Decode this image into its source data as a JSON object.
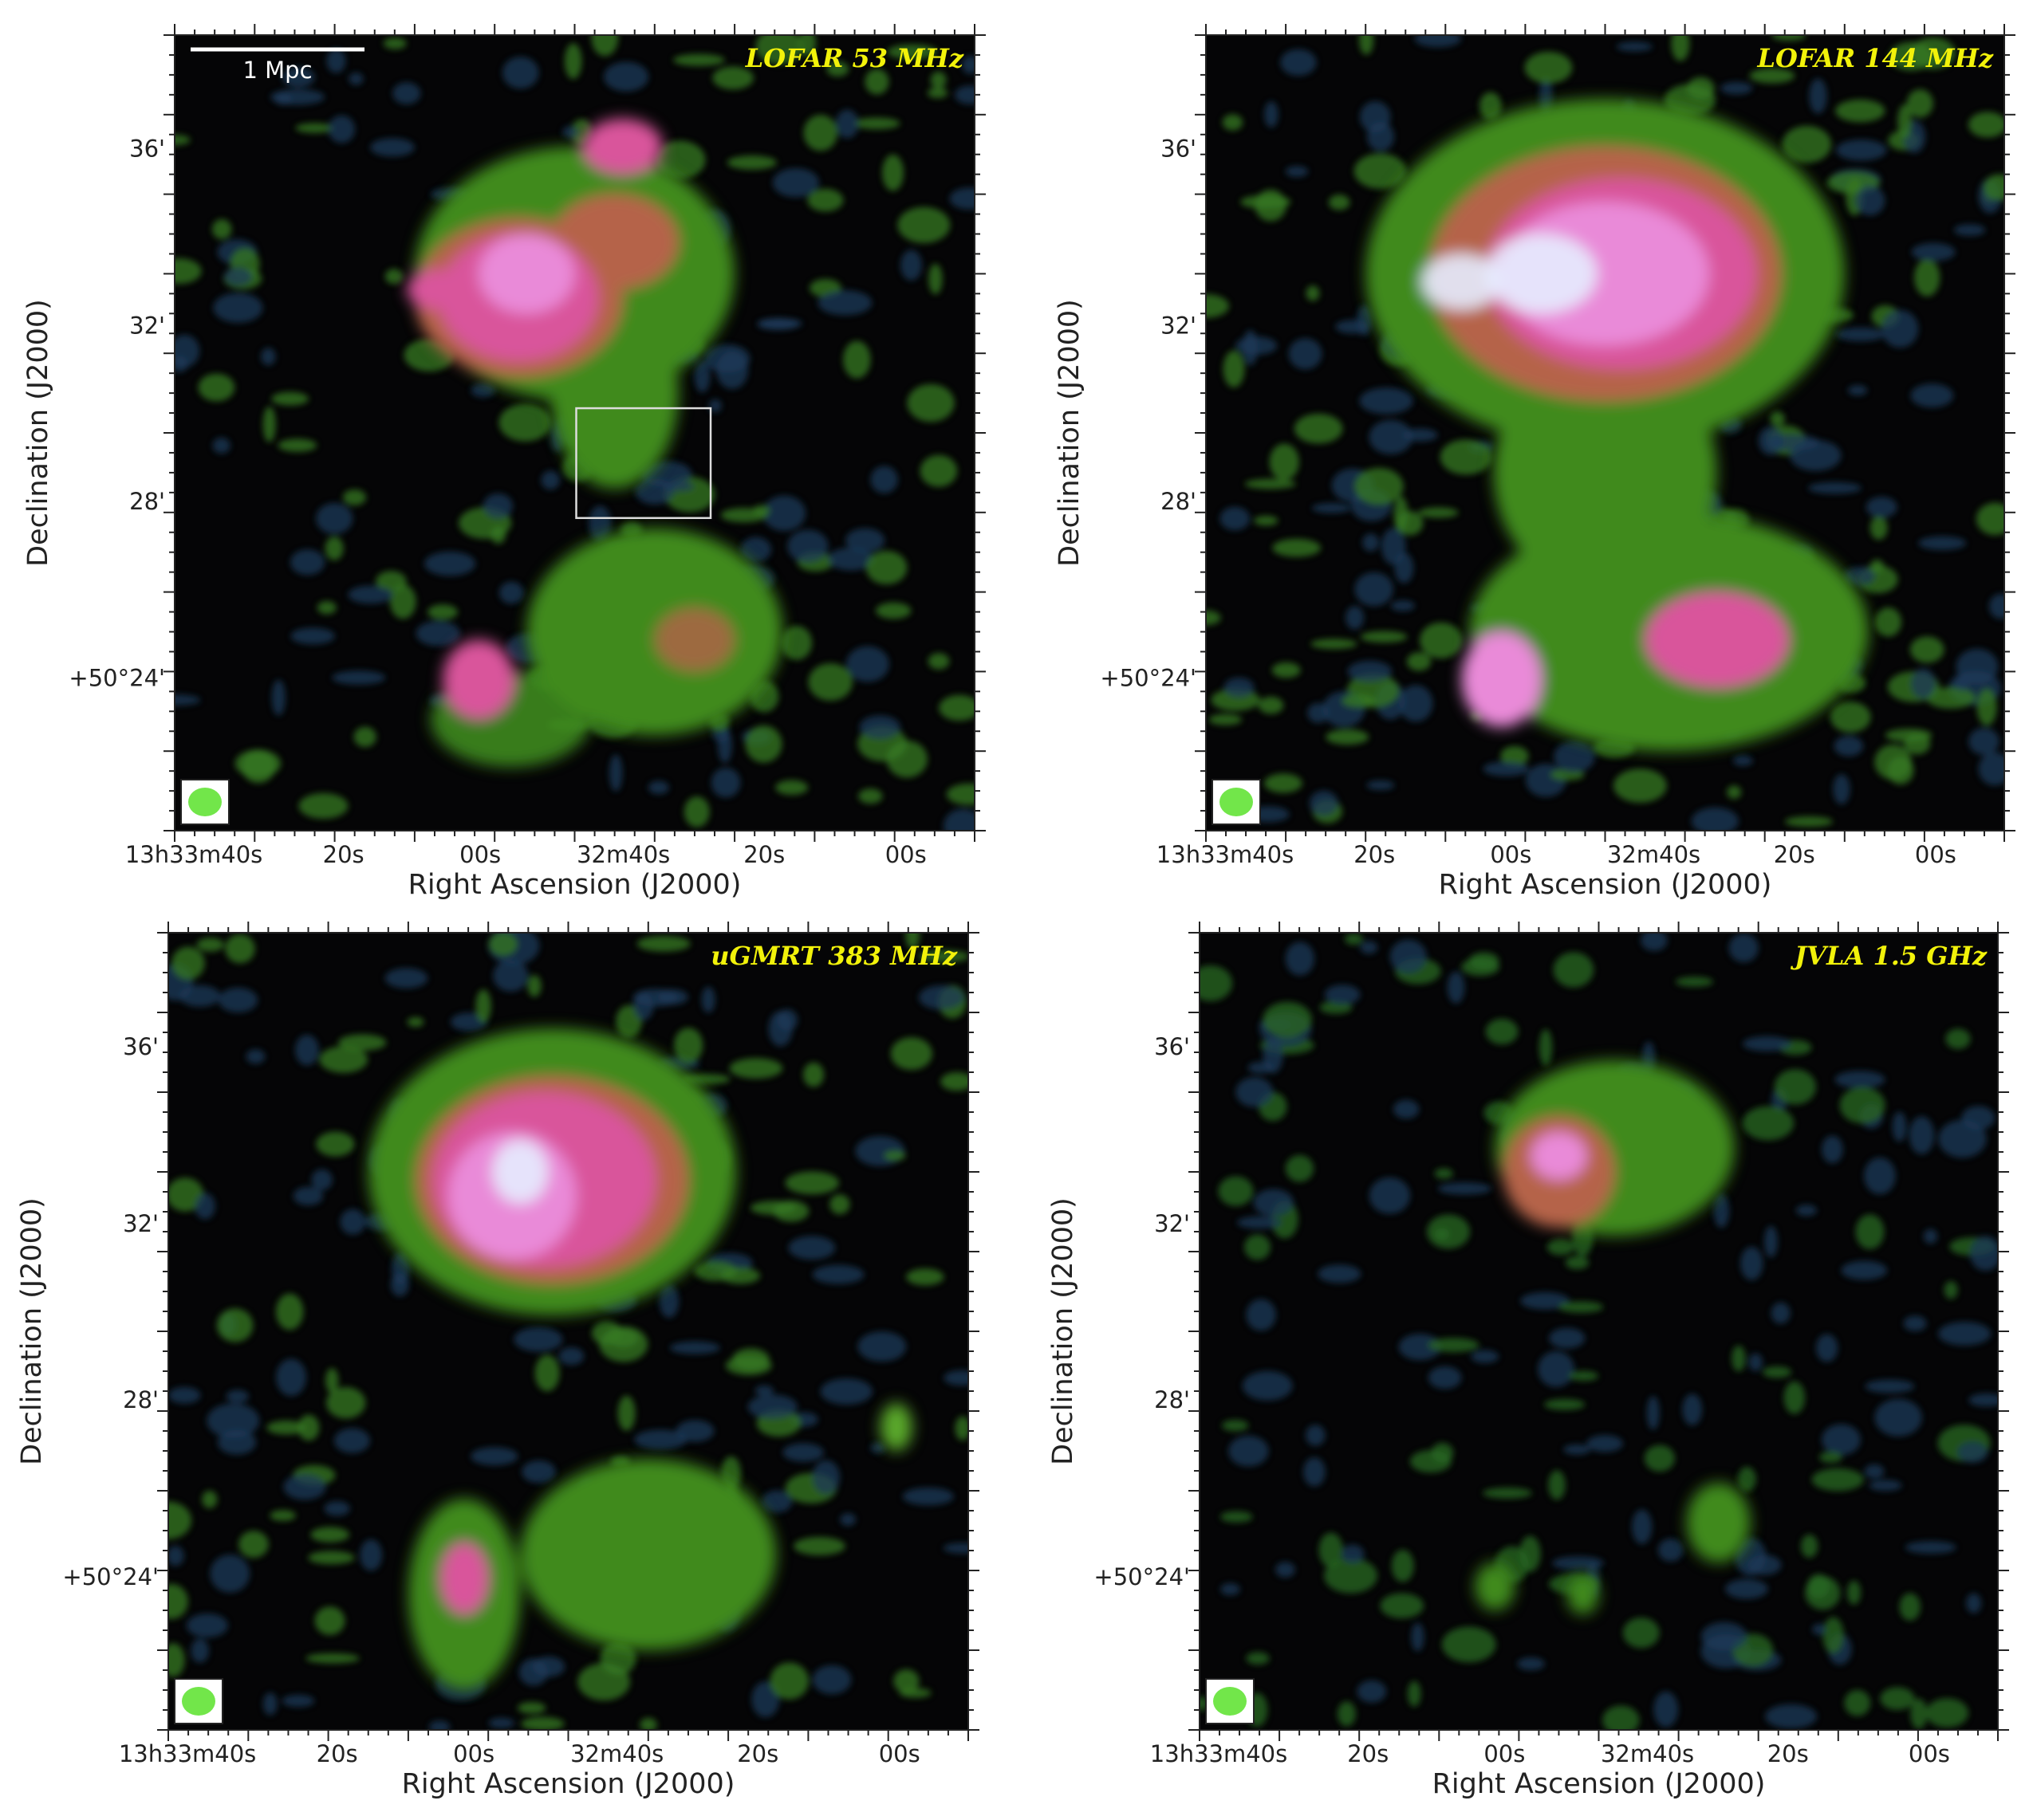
{
  "panels": [
    {
      "title": "LOFAR 53 MHz",
      "scale_bar": "1 Mpc",
      "xlabel": "Right Ascension (J2000)",
      "ylabel": "Declination (J2000)",
      "xticks": [
        "13h33m40s",
        "20s",
        "00s",
        "32m40s",
        "20s",
        "00s"
      ],
      "yticks": [
        "36'",
        "32'",
        "28'",
        "+50°24'"
      ]
    },
    {
      "title": "LOFAR 144 MHz",
      "xlabel": "Right Ascension (J2000)",
      "ylabel": "Declination (J2000)",
      "xticks": [
        "13h33m40s",
        "20s",
        "00s",
        "32m40s",
        "20s",
        "00s"
      ],
      "yticks": [
        "36'",
        "32'",
        "28'",
        "+50°24'"
      ]
    },
    {
      "title": "uGMRT 383 MHz",
      "xlabel": "Right Ascension (J2000)",
      "ylabel": "Declination (J2000)",
      "xticks": [
        "13h33m40s",
        "20s",
        "00s",
        "32m40s",
        "20s",
        "00s"
      ],
      "yticks": [
        "36'",
        "32'",
        "28'",
        "+50°24'"
      ]
    },
    {
      "title": "JVLA 1.5 GHz",
      "xlabel": "Right Ascension (J2000)",
      "ylabel": "Declination (J2000)",
      "xticks": [
        "13h33m40s",
        "20s",
        "00s",
        "32m40s",
        "20s",
        "00s"
      ],
      "yticks": [
        "36'",
        "32'",
        "28'",
        "+50°24'"
      ]
    }
  ]
}
